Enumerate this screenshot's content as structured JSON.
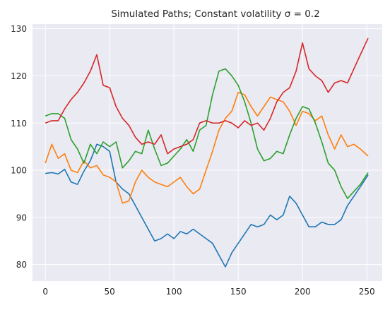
{
  "chart_data": {
    "type": "line",
    "title": "Simulated Paths; Constant volatility σ = 0.2",
    "xlabel": "",
    "ylabel": "",
    "xlim": [
      -10,
      262
    ],
    "ylim": [
      76.5,
      131.0
    ],
    "xticks": [
      0,
      50,
      100,
      150,
      200,
      250
    ],
    "yticks": [
      80,
      90,
      100,
      110,
      120,
      130
    ],
    "grid": true,
    "legend": "none",
    "background": "#EAEAF2",
    "grid_color": "#FFFFFF",
    "series": [
      {
        "color": "#1f77b4",
        "x": [
          0,
          5,
          10,
          15,
          20,
          25,
          30,
          35,
          40,
          45,
          50,
          55,
          60,
          65,
          70,
          75,
          80,
          85,
          90,
          95,
          100,
          105,
          110,
          115,
          120,
          125,
          130,
          135,
          140,
          145,
          150,
          155,
          160,
          165,
          170,
          175,
          180,
          185,
          190,
          195,
          200,
          205,
          210,
          215,
          220,
          225,
          230,
          235,
          240,
          245,
          251
        ],
        "y": [
          99.3,
          99.5,
          99.2,
          100.2,
          97.5,
          97.0,
          99.8,
          102.0,
          105.5,
          105.0,
          104.0,
          97.5,
          96.0,
          95.0,
          92.5,
          90.0,
          87.5,
          85.0,
          85.5,
          86.5,
          85.5,
          87.0,
          86.5,
          87.5,
          86.5,
          85.5,
          84.5,
          82.0,
          79.5,
          82.5,
          84.5,
          86.5,
          88.5,
          88.0,
          88.5,
          90.5,
          89.5,
          90.5,
          94.5,
          93.0,
          90.5,
          88.0,
          88.0,
          89.0,
          88.5,
          88.5,
          89.5,
          92.5,
          94.5,
          96.5,
          99.0
        ]
      },
      {
        "color": "#ff7f0e",
        "x": [
          0,
          5,
          10,
          15,
          20,
          25,
          30,
          35,
          40,
          45,
          50,
          55,
          60,
          65,
          70,
          75,
          80,
          85,
          90,
          95,
          100,
          105,
          110,
          115,
          120,
          125,
          130,
          135,
          140,
          145,
          150,
          155,
          160,
          165,
          170,
          175,
          180,
          185,
          190,
          195,
          200,
          205,
          210,
          215,
          220,
          225,
          230,
          235,
          240,
          245,
          251
        ],
        "y": [
          101.5,
          105.5,
          102.5,
          103.5,
          100.0,
          99.5,
          102.0,
          100.5,
          101.0,
          99.0,
          98.5,
          97.5,
          93.0,
          93.5,
          97.5,
          100.0,
          98.5,
          97.5,
          97.0,
          96.5,
          97.5,
          98.5,
          96.5,
          95.0,
          96.0,
          100.0,
          104.0,
          108.5,
          111.0,
          112.5,
          116.5,
          116.0,
          113.5,
          111.5,
          113.5,
          115.5,
          115.0,
          114.5,
          112.5,
          109.5,
          112.5,
          112.0,
          110.5,
          111.5,
          107.5,
          104.5,
          107.5,
          105.0,
          105.5,
          104.5,
          103.0
        ]
      },
      {
        "color": "#2ca02c",
        "x": [
          0,
          5,
          10,
          15,
          20,
          25,
          30,
          35,
          40,
          45,
          50,
          55,
          60,
          65,
          70,
          75,
          80,
          85,
          90,
          95,
          100,
          105,
          110,
          115,
          120,
          125,
          130,
          135,
          140,
          145,
          150,
          155,
          160,
          165,
          170,
          175,
          180,
          185,
          190,
          195,
          200,
          205,
          210,
          215,
          220,
          225,
          230,
          235,
          240,
          245,
          251
        ],
        "y": [
          111.5,
          112.0,
          112.0,
          111.0,
          106.5,
          104.5,
          101.5,
          105.5,
          103.5,
          106.0,
          105.0,
          106.0,
          100.5,
          102.0,
          104.0,
          103.5,
          108.5,
          104.5,
          101.0,
          101.5,
          103.0,
          104.5,
          106.5,
          104.0,
          108.5,
          109.5,
          116.0,
          121.0,
          121.5,
          120.0,
          118.0,
          114.5,
          110.0,
          104.5,
          102.0,
          102.5,
          104.0,
          103.5,
          107.5,
          111.0,
          113.5,
          113.0,
          110.0,
          106.0,
          101.5,
          100.0,
          96.5,
          94.0,
          95.5,
          97.0,
          99.5
        ]
      },
      {
        "color": "#d62728",
        "x": [
          0,
          5,
          10,
          15,
          20,
          25,
          30,
          35,
          40,
          45,
          50,
          55,
          60,
          65,
          70,
          75,
          80,
          85,
          90,
          95,
          100,
          105,
          110,
          115,
          120,
          125,
          130,
          135,
          140,
          145,
          150,
          155,
          160,
          165,
          170,
          175,
          180,
          185,
          190,
          195,
          200,
          205,
          210,
          215,
          220,
          225,
          230,
          235,
          240,
          245,
          251
        ],
        "y": [
          110.0,
          110.5,
          110.5,
          113.0,
          115.0,
          116.5,
          118.5,
          121.0,
          124.5,
          118.0,
          117.5,
          113.5,
          111.0,
          109.5,
          107.0,
          105.5,
          106.0,
          105.5,
          107.5,
          103.5,
          104.5,
          105.0,
          105.5,
          106.5,
          110.0,
          110.5,
          110.0,
          110.0,
          110.5,
          110.0,
          109.0,
          110.5,
          109.5,
          110.0,
          108.5,
          111.0,
          114.5,
          116.5,
          117.5,
          121.0,
          127.0,
          121.5,
          120.0,
          119.0,
          116.5,
          118.5,
          119.0,
          118.5,
          121.5,
          124.5,
          128.0
        ]
      }
    ]
  }
}
